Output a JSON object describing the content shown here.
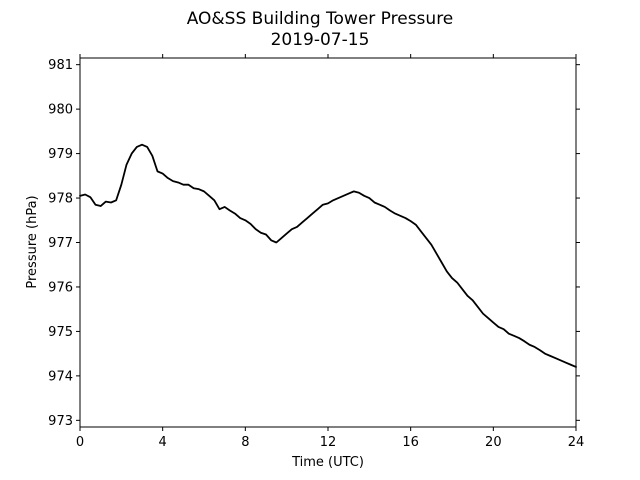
{
  "chart_data": {
    "type": "line",
    "title": "AO&SS Building Tower Pressure",
    "subtitle": "2019-07-15",
    "xlabel": "Time (UTC)",
    "ylabel": "Pressure (hPa)",
    "xlim": [
      0,
      24
    ],
    "ylim": [
      972.85,
      981.15
    ],
    "xticks": [
      0,
      4,
      8,
      12,
      16,
      20,
      24
    ],
    "yticks": [
      973,
      974,
      975,
      976,
      977,
      978,
      979,
      980,
      981
    ],
    "grid": false,
    "line_color": "#000000",
    "series": [
      {
        "x": [
          0.0,
          0.25,
          0.5,
          0.75,
          1.0,
          1.25,
          1.5,
          1.75,
          2.0,
          2.25,
          2.5,
          2.75,
          3.0,
          3.25,
          3.5,
          3.75,
          4.0,
          4.25,
          4.5,
          4.75,
          5.0,
          5.25,
          5.5,
          5.75,
          6.0,
          6.25,
          6.5,
          6.75,
          7.0,
          7.25,
          7.5,
          7.75,
          8.0,
          8.25,
          8.5,
          8.75,
          9.0,
          9.25,
          9.5,
          9.75,
          10.0,
          10.25,
          10.5,
          10.75,
          11.0,
          11.25,
          11.5,
          11.75,
          12.0,
          12.25,
          12.5,
          12.75,
          13.0,
          13.25,
          13.5,
          13.75,
          14.0,
          14.25,
          14.5,
          14.75,
          15.0,
          15.25,
          15.5,
          15.75,
          16.0,
          16.25,
          16.5,
          16.75,
          17.0,
          17.25,
          17.5,
          17.75,
          18.0,
          18.25,
          18.5,
          18.75,
          19.0,
          19.25,
          19.5,
          19.75,
          20.0,
          20.25,
          20.5,
          20.75,
          21.0,
          21.25,
          21.5,
          21.75,
          22.0,
          22.25,
          22.5,
          22.75,
          23.0,
          23.25,
          23.5,
          23.75,
          24.0
        ],
        "values": [
          978.05,
          978.08,
          978.02,
          977.85,
          977.82,
          977.92,
          977.9,
          977.95,
          978.3,
          978.75,
          979.0,
          979.15,
          979.2,
          979.15,
          978.95,
          978.6,
          978.55,
          978.45,
          978.38,
          978.35,
          978.3,
          978.3,
          978.22,
          978.2,
          978.15,
          978.05,
          977.95,
          977.75,
          977.8,
          977.72,
          977.65,
          977.55,
          977.5,
          977.42,
          977.3,
          977.22,
          977.18,
          977.05,
          977.0,
          977.1,
          977.2,
          977.3,
          977.35,
          977.45,
          977.55,
          977.65,
          977.75,
          977.85,
          977.88,
          977.95,
          978.0,
          978.05,
          978.1,
          978.15,
          978.12,
          978.05,
          978.0,
          977.9,
          977.85,
          977.8,
          977.72,
          977.65,
          977.6,
          977.55,
          977.48,
          977.4,
          977.25,
          977.1,
          976.95,
          976.75,
          976.55,
          976.35,
          976.2,
          976.1,
          975.95,
          975.8,
          975.7,
          975.55,
          975.4,
          975.3,
          975.2,
          975.1,
          975.05,
          974.95,
          974.9,
          974.85,
          974.78,
          974.7,
          974.65,
          974.58,
          974.5,
          974.45,
          974.4,
          974.35,
          974.3,
          974.25,
          974.2
        ]
      }
    ]
  }
}
